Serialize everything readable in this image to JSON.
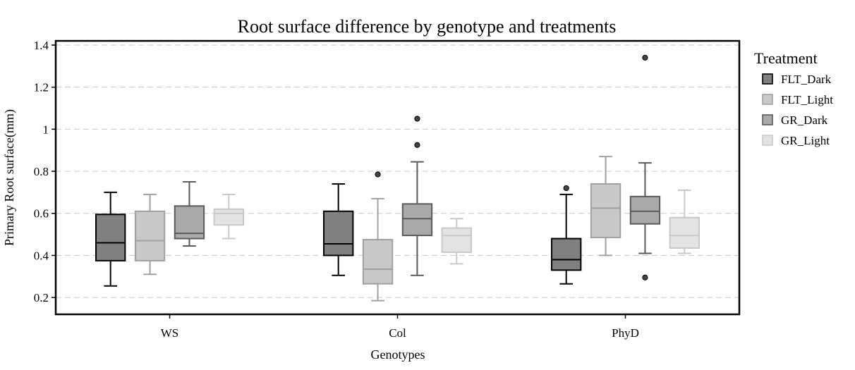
{
  "chart_data": {
    "type": "boxplot",
    "title": "Root surface difference by genotype and treatments",
    "xlabel": "Genotypes",
    "ylabel": "Primary Root surface(mm)",
    "ylim": [
      0.12,
      1.42
    ],
    "yticks": [
      0.2,
      0.4,
      0.6,
      0.8,
      1,
      1.2,
      1.4
    ],
    "ytick_labels": [
      "0.2",
      "0.4",
      "0.6",
      "0.8",
      "1",
      "1.2",
      "1.4"
    ],
    "grid": "horizontal-dashed",
    "legend": {
      "title": "Treatment",
      "placement": "right"
    },
    "categories": [
      "WS",
      "Col",
      "PhyD"
    ],
    "series": [
      {
        "name": "FLT_Dark",
        "fill": "#808080",
        "stroke": "#000000",
        "boxes": [
          {
            "whisker_low": 0.255,
            "q1": 0.375,
            "median": 0.46,
            "q3": 0.595,
            "whisker_high": 0.7,
            "outliers": []
          },
          {
            "whisker_low": 0.305,
            "q1": 0.4,
            "median": 0.455,
            "q3": 0.61,
            "whisker_high": 0.74,
            "outliers": []
          },
          {
            "whisker_low": 0.265,
            "q1": 0.33,
            "median": 0.38,
            "q3": 0.48,
            "whisker_high": 0.69,
            "outliers": [
              0.72
            ]
          }
        ]
      },
      {
        "name": "FLT_Light",
        "fill": "#c8c8c8",
        "stroke": "#a0a0a0",
        "boxes": [
          {
            "whisker_low": 0.31,
            "q1": 0.375,
            "median": 0.47,
            "q3": 0.61,
            "whisker_high": 0.69,
            "outliers": []
          },
          {
            "whisker_low": 0.185,
            "q1": 0.265,
            "median": 0.335,
            "q3": 0.475,
            "whisker_high": 0.67,
            "outliers": [
              0.785
            ]
          },
          {
            "whisker_low": 0.4,
            "q1": 0.485,
            "median": 0.625,
            "q3": 0.74,
            "whisker_high": 0.87,
            "outliers": []
          }
        ]
      },
      {
        "name": "GR_Dark",
        "fill": "#a9a9a9",
        "stroke": "#5a5a5a",
        "boxes": [
          {
            "whisker_low": 0.445,
            "q1": 0.48,
            "median": 0.505,
            "q3": 0.635,
            "whisker_high": 0.75,
            "outliers": []
          },
          {
            "whisker_low": 0.305,
            "q1": 0.495,
            "median": 0.575,
            "q3": 0.645,
            "whisker_high": 0.845,
            "outliers": [
              0.925,
              1.05
            ]
          },
          {
            "whisker_low": 0.41,
            "q1": 0.55,
            "median": 0.61,
            "q3": 0.68,
            "whisker_high": 0.84,
            "outliers": [
              0.295,
              1.34
            ]
          }
        ]
      },
      {
        "name": "GR_Light",
        "fill": "#e3e3e3",
        "stroke": "#c8c8c8",
        "boxes": [
          {
            "whisker_low": 0.48,
            "q1": 0.545,
            "median": 0.6,
            "q3": 0.62,
            "whisker_high": 0.69,
            "outliers": []
          },
          {
            "whisker_low": 0.36,
            "q1": 0.415,
            "median": 0.495,
            "q3": 0.53,
            "whisker_high": 0.575,
            "outliers": []
          },
          {
            "whisker_low": 0.41,
            "q1": 0.435,
            "median": 0.495,
            "q3": 0.58,
            "whisker_high": 0.71,
            "outliers": []
          }
        ]
      }
    ]
  }
}
